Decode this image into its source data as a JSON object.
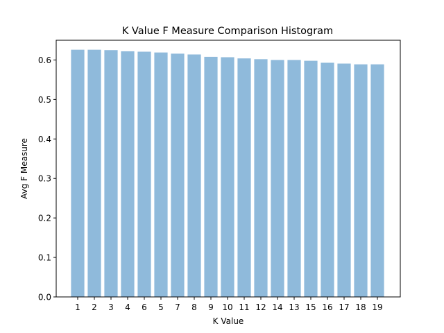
{
  "chart_data": {
    "type": "bar",
    "title": "K Value F Measure Comparison Histogram",
    "xlabel": "K Value",
    "ylabel": "Avg F Measure",
    "categories": [
      "1",
      "2",
      "3",
      "4",
      "6",
      "5",
      "7",
      "8",
      "9",
      "10",
      "11",
      "12",
      "14",
      "13",
      "15",
      "16",
      "17",
      "18",
      "19"
    ],
    "values": [
      0.626,
      0.626,
      0.625,
      0.622,
      0.621,
      0.619,
      0.616,
      0.614,
      0.608,
      0.607,
      0.604,
      0.602,
      0.6,
      0.6,
      0.598,
      0.593,
      0.591,
      0.589,
      0.589
    ],
    "ylim": [
      0,
      0.65
    ],
    "yticks": [
      "0.0",
      "0.1",
      "0.2",
      "0.3",
      "0.4",
      "0.5",
      "0.6"
    ],
    "bar_color": "#8fbadb",
    "grid": false
  }
}
